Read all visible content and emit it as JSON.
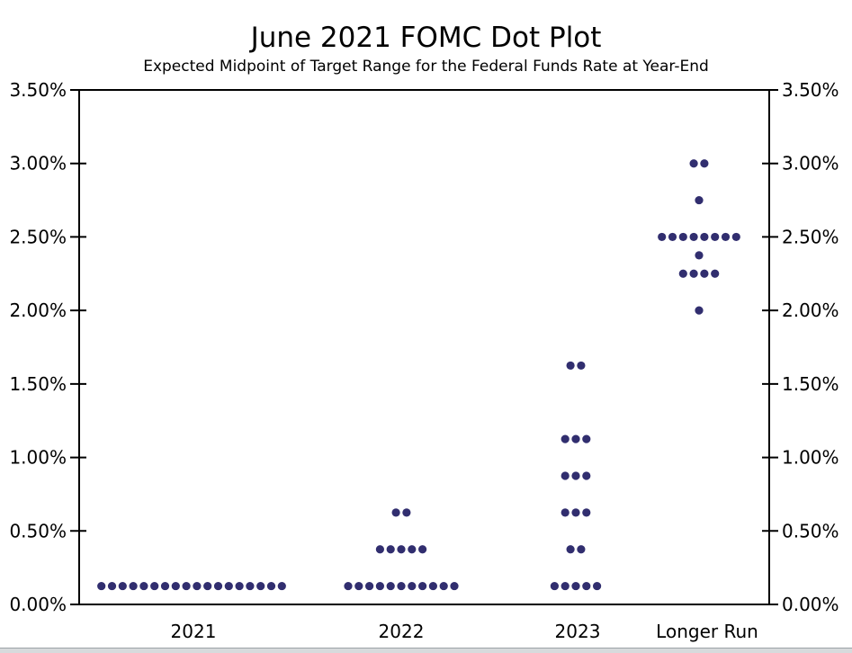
{
  "chart_data": {
    "type": "scatter",
    "variant": "fomc-dot-plot",
    "title": "June 2021 FOMC Dot Plot",
    "subtitle": "Expected Midpoint of Target Range for the Federal Funds Rate at Year-End",
    "dot_color": "#312e6f",
    "axis_color": "#000000",
    "background_color": "#ffffff",
    "grid": false,
    "legend": false,
    "y_axis": {
      "min": 0,
      "max": 3.5,
      "tick_step": 0.5,
      "tick_labels": [
        "0.00%",
        "0.50%",
        "1.00%",
        "1.50%",
        "2.00%",
        "2.50%",
        "3.00%",
        "3.50%"
      ],
      "label_sides": [
        "left",
        "right"
      ]
    },
    "categories": [
      "2021",
      "2022",
      "2023",
      "Longer Run"
    ],
    "series": [
      {
        "category": "2021",
        "dots": [
          {
            "rate": 0.125,
            "count": 18
          }
        ]
      },
      {
        "category": "2022",
        "dots": [
          {
            "rate": 0.125,
            "count": 11
          },
          {
            "rate": 0.375,
            "count": 5
          },
          {
            "rate": 0.625,
            "count": 2
          }
        ]
      },
      {
        "category": "2023",
        "dots": [
          {
            "rate": 0.125,
            "count": 5
          },
          {
            "rate": 0.375,
            "count": 2
          },
          {
            "rate": 0.625,
            "count": 3
          },
          {
            "rate": 0.875,
            "count": 3
          },
          {
            "rate": 1.125,
            "count": 3
          },
          {
            "rate": 1.625,
            "count": 2
          }
        ]
      },
      {
        "category": "Longer Run",
        "dots": [
          {
            "rate": 2.0,
            "count": 1
          },
          {
            "rate": 2.25,
            "count": 4
          },
          {
            "rate": 2.375,
            "count": 1
          },
          {
            "rate": 2.5,
            "count": 8
          },
          {
            "rate": 2.75,
            "count": 1
          },
          {
            "rate": 3.0,
            "count": 2
          }
        ]
      }
    ]
  }
}
